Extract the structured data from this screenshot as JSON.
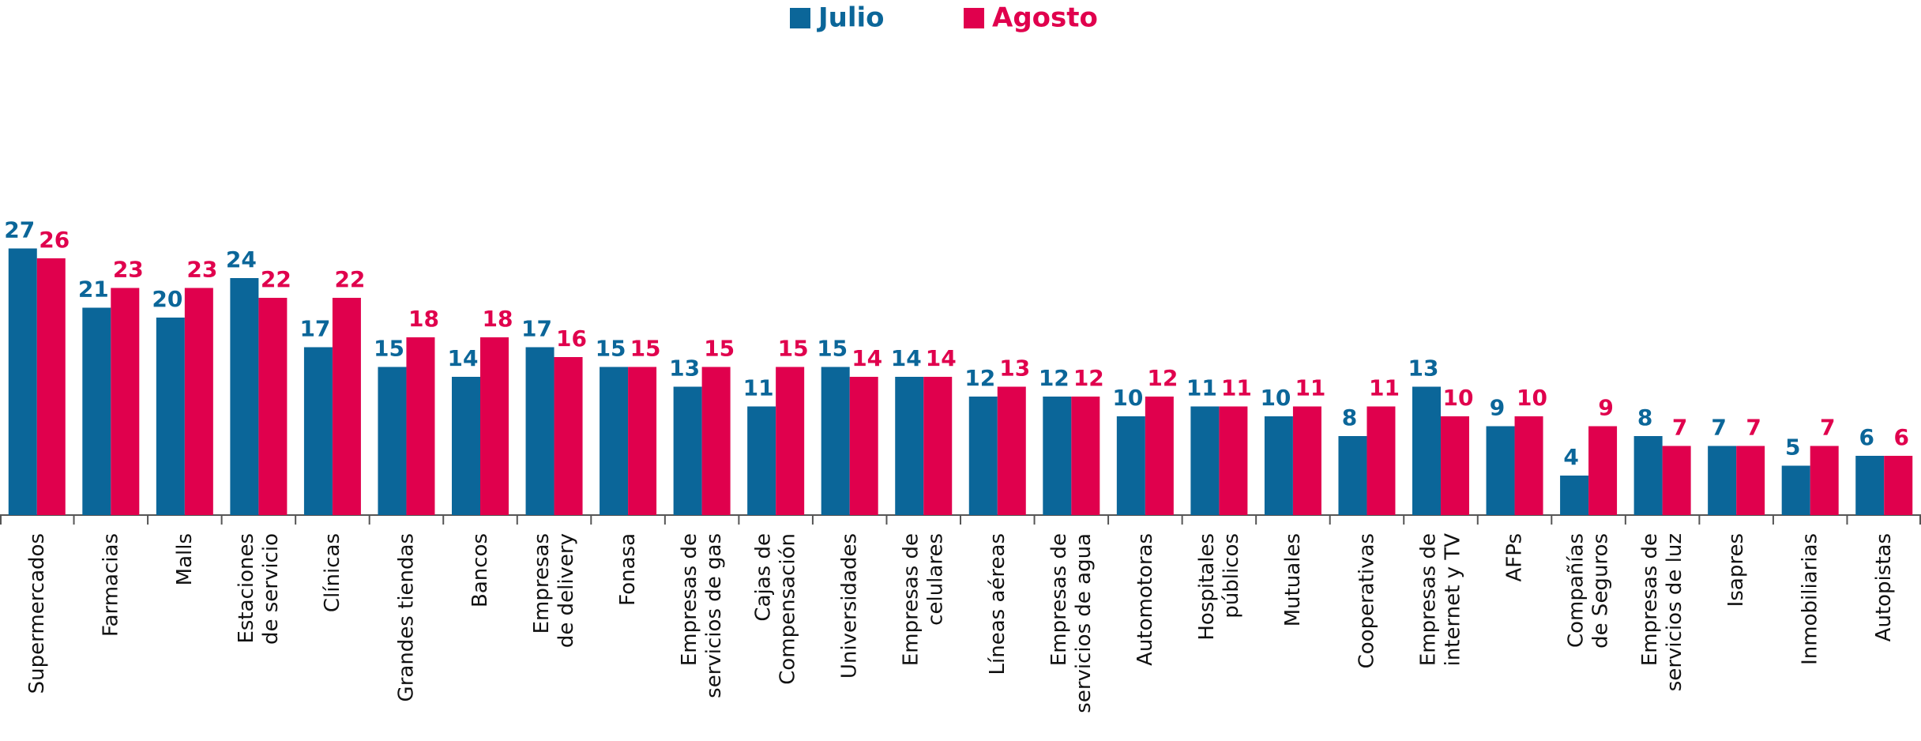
{
  "chart_data": {
    "type": "bar",
    "categories": [
      "Supermercados",
      "Farmacias",
      "Malls",
      "Estaciones\nde servicio",
      "Clínicas",
      "Grandes tiendas",
      "Bancos",
      "Empresas\nde delivery",
      "Fonasa",
      "Empresas de\nservicios de gas",
      "Cajas de\nCompensación",
      "Universidades",
      "Empresas de\ncelulares",
      "Líneas aéreas",
      "Empresas de\nservicios de agua",
      "Automotoras",
      "Hospitales\npúblicos",
      "Mutuales",
      "Cooperativas",
      "Empresas de\ninternet y TV",
      "AFPs",
      "Compañías\nde Seguros",
      "Empresas de\nservicios de luz",
      "Isapres",
      "Inmobiliarias",
      "Autopistas"
    ],
    "series": [
      {
        "name": "Julio",
        "color": "#0b6699",
        "values": [
          27,
          21,
          20,
          24,
          17,
          15,
          14,
          17,
          15,
          13,
          11,
          15,
          14,
          12,
          12,
          10,
          11,
          10,
          8,
          13,
          9,
          4,
          8,
          7,
          5,
          6
        ]
      },
      {
        "name": "Agosto",
        "color": "#e0004d",
        "values": [
          26,
          23,
          23,
          22,
          22,
          18,
          18,
          16,
          15,
          15,
          15,
          14,
          14,
          13,
          12,
          12,
          11,
          11,
          11,
          10,
          10,
          9,
          7,
          7,
          7,
          6
        ]
      }
    ],
    "legend": "top"
  }
}
